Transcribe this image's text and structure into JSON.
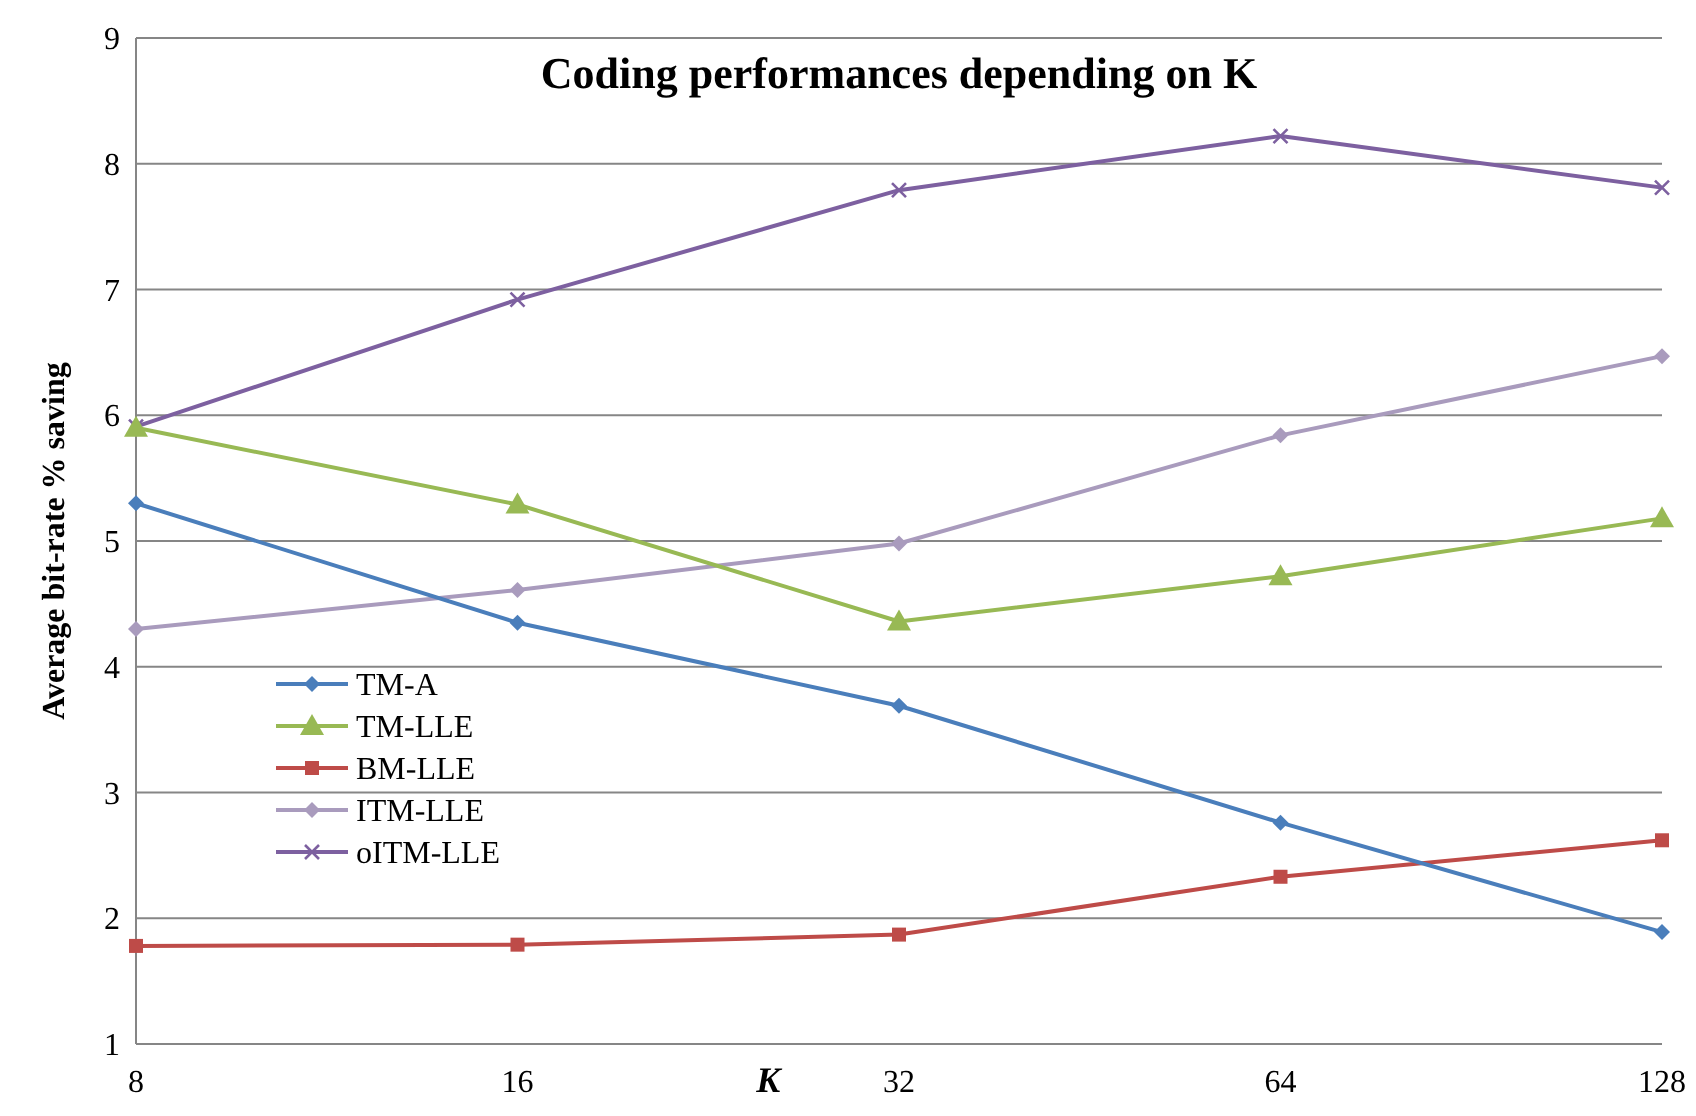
{
  "chart_data": {
    "type": "line",
    "title": "Coding performances depending on K",
    "xlabel": "K",
    "ylabel": "Average bit-rate % saving",
    "categories": [
      "8",
      "16",
      "32",
      "64",
      "128"
    ],
    "ylim": [
      1,
      9
    ],
    "yticks": [
      1,
      2,
      3,
      4,
      5,
      6,
      7,
      8,
      9
    ],
    "grid": "y",
    "legend": "bottom left",
    "series": [
      {
        "name": "TM-A",
        "color": "#4a7ebb",
        "marker": "diamond",
        "values": [
          5.3,
          4.35,
          3.69,
          2.76,
          1.89
        ]
      },
      {
        "name": "TM-LLE",
        "color": "#98b954",
        "marker": "triangle",
        "values": [
          5.9,
          5.29,
          4.36,
          4.72,
          5.18
        ]
      },
      {
        "name": "BM-LLE",
        "color": "#be4b48",
        "marker": "square",
        "values": [
          1.78,
          1.79,
          1.87,
          2.33,
          2.62
        ]
      },
      {
        "name": "ITM-LLE",
        "color": "#a99bbd",
        "marker": "diamond",
        "values": [
          4.3,
          4.61,
          4.98,
          5.84,
          6.47
        ]
      },
      {
        "name": "oITM-LLE",
        "color": "#7d60a0",
        "marker": "cross",
        "values": [
          5.91,
          6.92,
          7.79,
          8.22,
          7.81
        ]
      }
    ]
  }
}
